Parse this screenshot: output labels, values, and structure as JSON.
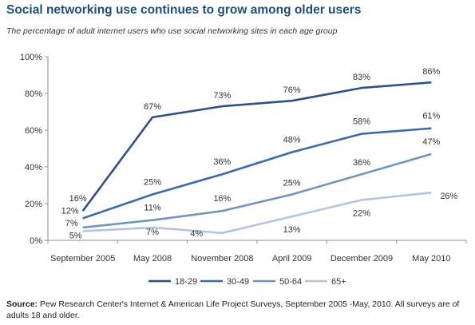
{
  "title": "Social networking use continues to grow among older users",
  "subtitle": "The percentage of adult internet users who use social networking sites in each age group",
  "source_label": "Source:",
  "source_text": "Pew Research Center's Internet & American Life Project Surveys, September 2005 -May, 2010. All surveys are of adults 18 and older.",
  "chart_data": {
    "type": "line",
    "categories": [
      "September 2005",
      "May 2008",
      "November 2008",
      "April 2009",
      "December 2009",
      "May 2010"
    ],
    "ylim": [
      0,
      100
    ],
    "yticks": [
      0,
      20,
      40,
      60,
      80,
      100
    ],
    "ytick_labels": [
      "0%",
      "20%",
      "40%",
      "60%",
      "80%",
      "100%"
    ],
    "grid": false,
    "legend_position": "bottom",
    "series": [
      {
        "name": "18-29",
        "color": "#2e4f87",
        "values": [
          16,
          67,
          73,
          76,
          83,
          86
        ],
        "labels": [
          "16%",
          "67%",
          "73%",
          "76%",
          "83%",
          "86%"
        ]
      },
      {
        "name": "30-49",
        "color": "#3f6aa8",
        "values": [
          12,
          25,
          36,
          48,
          58,
          61
        ],
        "labels": [
          "12%",
          "25%",
          "36%",
          "48%",
          "58%",
          "61%"
        ]
      },
      {
        "name": "50-64",
        "color": "#7493c2",
        "values": [
          7,
          11,
          16,
          25,
          36,
          47
        ],
        "labels": [
          "7%",
          "11%",
          "16%",
          "25%",
          "36%",
          "47%"
        ]
      },
      {
        "name": "65+",
        "color": "#b5c5de",
        "values": [
          5,
          7,
          4,
          13,
          22,
          26
        ],
        "labels": [
          "5%",
          "7%",
          "4%",
          "13%",
          "22%",
          "26%"
        ]
      }
    ]
  }
}
